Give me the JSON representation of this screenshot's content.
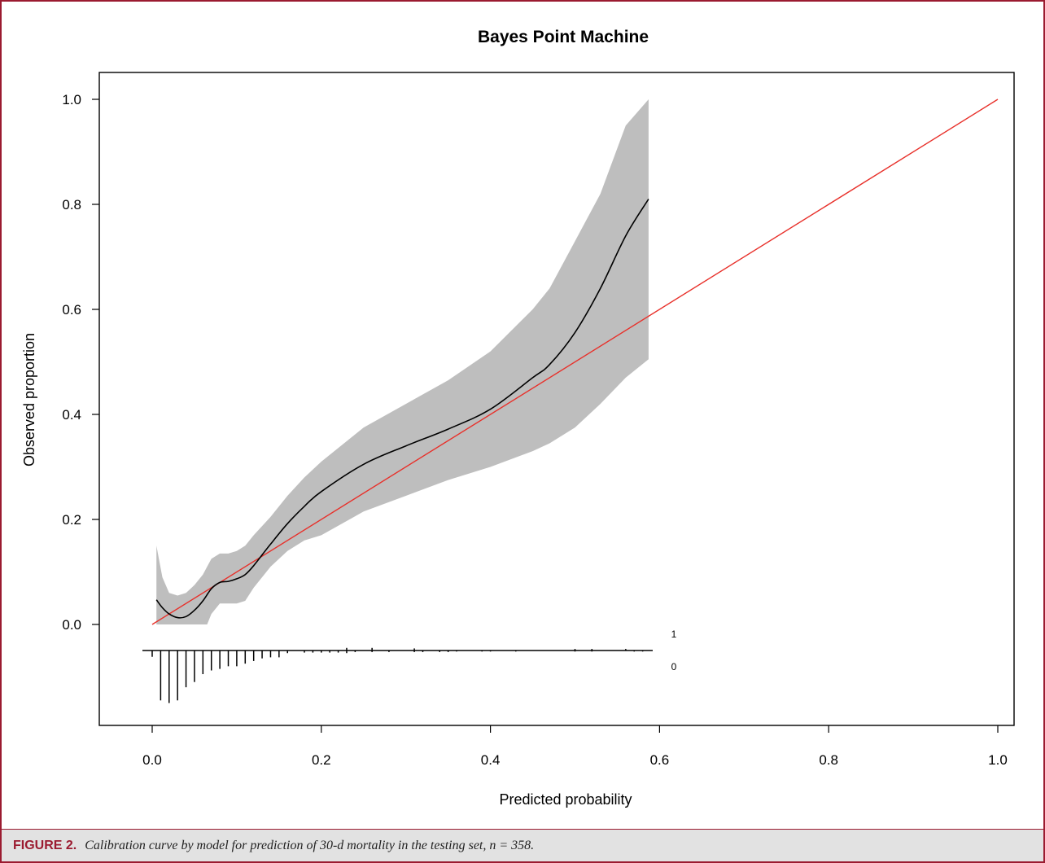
{
  "caption": {
    "label": "FIGURE 2.",
    "text": "Calibration curve by model for prediction of 30-d mortality in the testing set, n = 358."
  },
  "colors": {
    "frame": "#9b1b30",
    "band": "#bebebe",
    "curve": "#000000",
    "reference": "#e8302a"
  },
  "chart_data": {
    "type": "line",
    "title": "Bayes Point Machine",
    "xlabel": "Predicted probability",
    "ylabel": "Observed proportion",
    "xlim": [
      0,
      1
    ],
    "ylim": [
      0,
      1
    ],
    "xticks": [
      "0.0",
      "0.2",
      "0.4",
      "0.6",
      "0.8",
      "1.0"
    ],
    "yticks": [
      "0.0",
      "0.2",
      "0.4",
      "0.6",
      "0.8",
      "1.0"
    ],
    "reference_line": {
      "x": [
        0,
        1
      ],
      "y": [
        0,
        1
      ]
    },
    "calibration_curve": {
      "x": [
        0.005,
        0.012,
        0.02,
        0.03,
        0.04,
        0.05,
        0.06,
        0.07,
        0.08,
        0.09,
        0.1,
        0.11,
        0.12,
        0.14,
        0.16,
        0.18,
        0.2,
        0.25,
        0.3,
        0.35,
        0.4,
        0.45,
        0.47,
        0.5,
        0.53,
        0.56,
        0.587
      ],
      "y": [
        0.047,
        0.032,
        0.02,
        0.013,
        0.015,
        0.027,
        0.045,
        0.068,
        0.08,
        0.082,
        0.087,
        0.095,
        0.112,
        0.153,
        0.192,
        0.225,
        0.253,
        0.305,
        0.34,
        0.372,
        0.41,
        0.47,
        0.495,
        0.556,
        0.64,
        0.74,
        0.81
      ]
    },
    "confidence_band": {
      "x": [
        0.005,
        0.012,
        0.02,
        0.03,
        0.04,
        0.05,
        0.06,
        0.065,
        0.07,
        0.08,
        0.09,
        0.1,
        0.11,
        0.12,
        0.14,
        0.16,
        0.18,
        0.2,
        0.25,
        0.3,
        0.35,
        0.4,
        0.45,
        0.47,
        0.5,
        0.53,
        0.56,
        0.587
      ],
      "upper": [
        0.15,
        0.09,
        0.06,
        0.055,
        0.06,
        0.075,
        0.095,
        0.11,
        0.125,
        0.135,
        0.135,
        0.14,
        0.15,
        0.17,
        0.205,
        0.245,
        0.28,
        0.31,
        0.375,
        0.42,
        0.465,
        0.52,
        0.6,
        0.64,
        0.73,
        0.82,
        0.95,
        1.0
      ],
      "lower": [
        0.0,
        0.0,
        0.0,
        0.0,
        0.0,
        0.0,
        0.0,
        0.0,
        0.02,
        0.04,
        0.04,
        0.04,
        0.045,
        0.07,
        0.11,
        0.14,
        0.16,
        0.17,
        0.215,
        0.245,
        0.275,
        0.3,
        0.33,
        0.345,
        0.375,
        0.42,
        0.47,
        0.505
      ]
    },
    "distribution_labels": {
      "events": "1",
      "non_events": "0"
    },
    "rug_non_events": {
      "x": [
        0.0,
        0.01,
        0.02,
        0.03,
        0.04,
        0.05,
        0.06,
        0.07,
        0.08,
        0.09,
        0.1,
        0.11,
        0.12,
        0.13,
        0.14,
        0.15,
        0.16,
        0.18,
        0.19,
        0.2,
        0.21,
        0.22,
        0.23,
        0.24,
        0.26,
        0.28,
        0.31,
        0.32,
        0.34,
        0.35,
        0.36,
        0.39,
        0.4,
        0.43,
        0.5,
        0.52,
        0.57,
        0.58
      ],
      "height": [
        0.012,
        0.095,
        0.1,
        0.095,
        0.07,
        0.06,
        0.045,
        0.038,
        0.035,
        0.03,
        0.03,
        0.025,
        0.02,
        0.015,
        0.013,
        0.013,
        0.005,
        0.004,
        0.004,
        0.004,
        0.004,
        0.004,
        0.005,
        0.003,
        0.003,
        0.003,
        0.003,
        0.003,
        0.003,
        0.003,
        0.002,
        0.002,
        0.002,
        0.002,
        0.002,
        0.002,
        0.002,
        0.002
      ]
    },
    "rug_events": {
      "x": [
        0.23,
        0.26,
        0.31,
        0.5,
        0.52,
        0.56
      ],
      "height": [
        0.005,
        0.005,
        0.004,
        0.003,
        0.003,
        0.003
      ]
    }
  }
}
